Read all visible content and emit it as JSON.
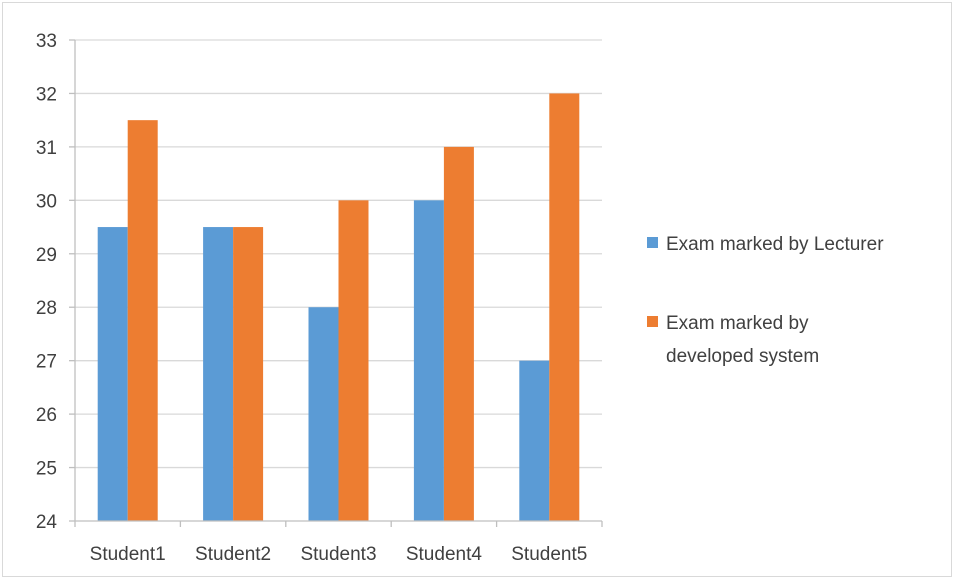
{
  "chart_data": {
    "type": "bar",
    "title": "",
    "xlabel": "",
    "ylabel": "",
    "categories": [
      "Student1",
      "Student2",
      "Student3",
      "Student4",
      "Student5"
    ],
    "series": [
      {
        "name": "Exam marked by Lecturer",
        "color": "#5b9bd5",
        "values": [
          29.5,
          29.5,
          28,
          30,
          27
        ]
      },
      {
        "name": "Exam marked by developed system",
        "color": "#ed7d31",
        "values": [
          31.5,
          29.5,
          30,
          31,
          32
        ]
      }
    ],
    "ylim": [
      24,
      33
    ],
    "yticks": [
      24,
      25,
      26,
      27,
      28,
      29,
      30,
      31,
      32,
      33
    ],
    "grid": true,
    "legend_position": "right",
    "legend": [
      {
        "lines": [
          "Exam marked by Lecturer"
        ]
      },
      {
        "lines": [
          "Exam marked by",
          "developed system"
        ]
      }
    ]
  }
}
